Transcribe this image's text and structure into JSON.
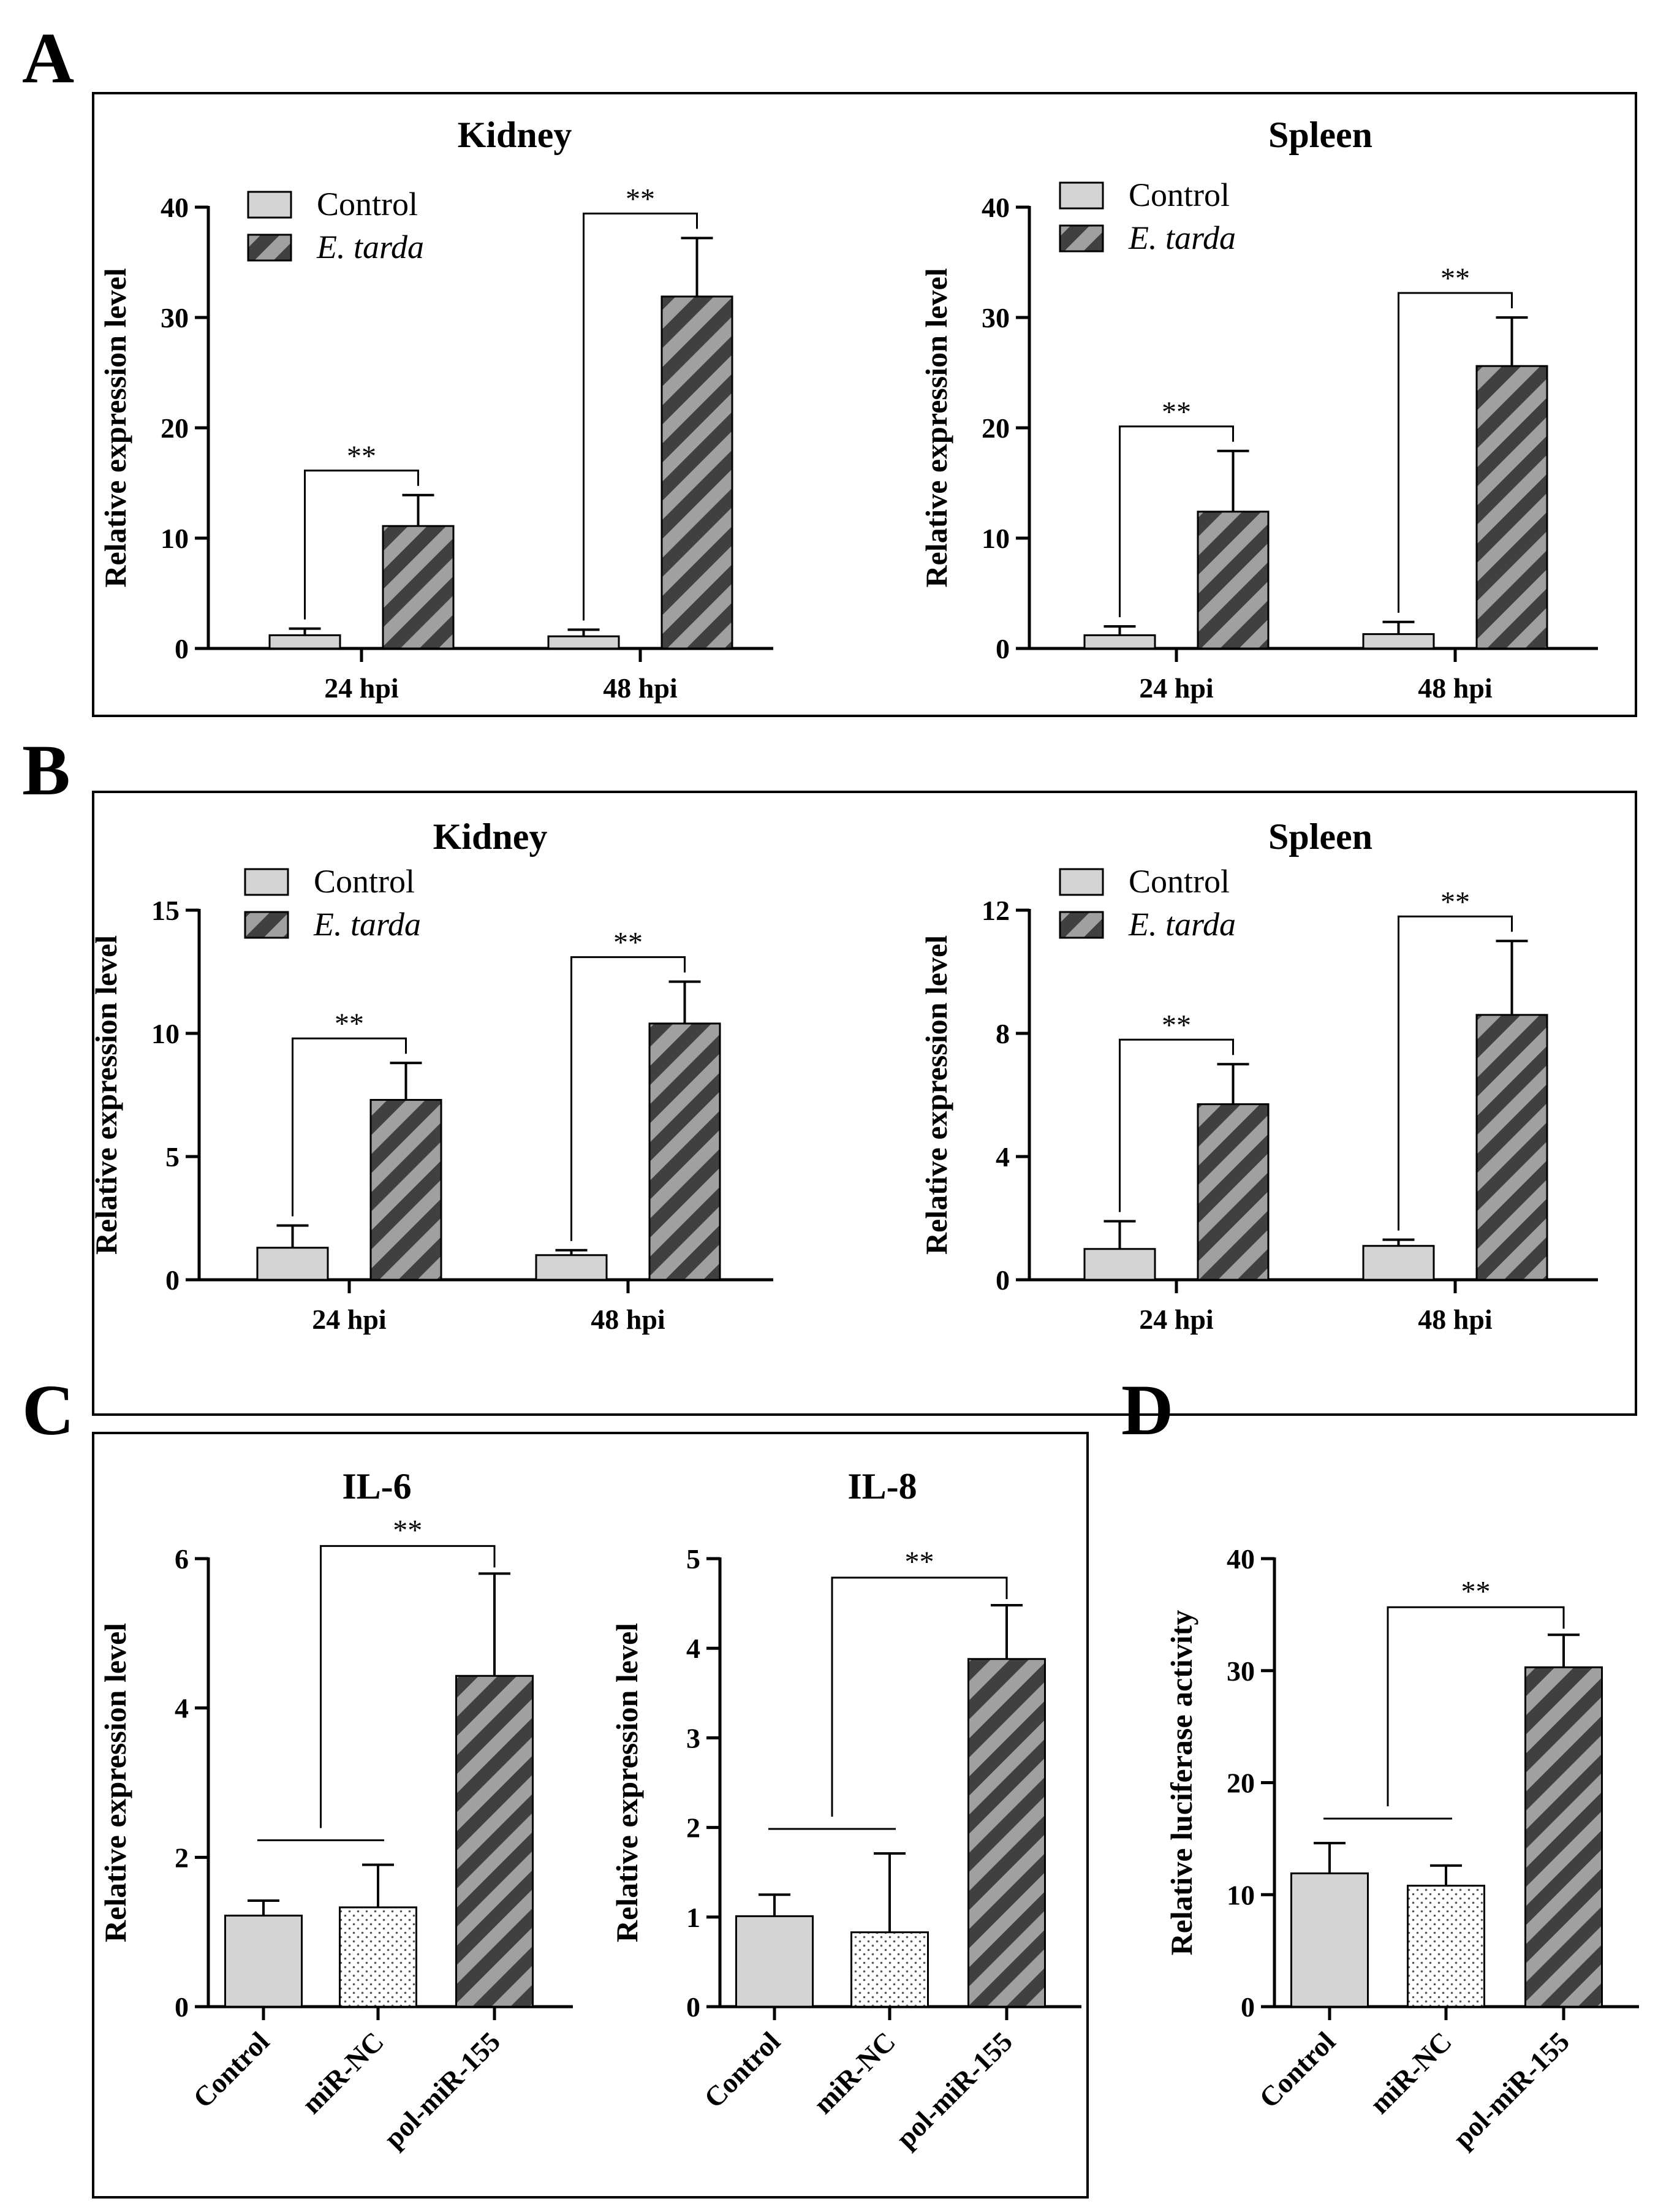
{
  "panels": [
    {
      "id": "A",
      "label": "A",
      "box": true,
      "charts": [
        0,
        1
      ]
    },
    {
      "id": "B",
      "label": "B",
      "box": true,
      "charts": [
        2,
        3
      ]
    },
    {
      "id": "C",
      "label": "C",
      "box": true,
      "charts": [
        4,
        5
      ]
    },
    {
      "id": "D",
      "label": "D",
      "box": false,
      "charts": [
        6
      ]
    }
  ],
  "colors": {
    "control_fill": "#d4d4d4",
    "stripe_light": "#a0a0a0",
    "stripe_dark": "#404040",
    "dotted_bg": "#ffffff",
    "dot_color": "#555555",
    "axis": "#000000"
  },
  "chart_data": [
    {
      "type": "bar",
      "panel": "A",
      "title": "Kidney",
      "ylabel": "Relative expression level",
      "xlabel": "",
      "ylim": [
        0,
        40
      ],
      "yticks": [
        0,
        10,
        20,
        30,
        40
      ],
      "categories": [
        "24 hpi",
        "48 hpi"
      ],
      "legend": {
        "position": "top-left",
        "entries": [
          "Control",
          "E. tarda"
        ]
      },
      "series": [
        {
          "name": "Control",
          "pattern": "solid",
          "values": [
            1.2,
            1.1
          ],
          "errors": [
            0.6,
            0.6
          ]
        },
        {
          "name": "E. tarda",
          "pattern": "stripes",
          "values": [
            11.1,
            31.9
          ],
          "errors": [
            2.8,
            5.3
          ]
        }
      ],
      "significance": [
        {
          "label": "**",
          "category": 0
        },
        {
          "label": "**",
          "category": 1
        }
      ]
    },
    {
      "type": "bar",
      "panel": "A",
      "title": "Spleen",
      "ylabel": "Relative expression level",
      "xlabel": "",
      "ylim": [
        0,
        40
      ],
      "yticks": [
        0,
        10,
        20,
        30,
        40
      ],
      "categories": [
        "24 hpi",
        "48 hpi"
      ],
      "legend": {
        "position": "top-left",
        "entries": [
          "Control",
          "E. tarda"
        ]
      },
      "series": [
        {
          "name": "Control",
          "pattern": "solid",
          "values": [
            1.2,
            1.3
          ],
          "errors": [
            0.8,
            1.1
          ]
        },
        {
          "name": "E. tarda",
          "pattern": "stripes",
          "values": [
            12.4,
            25.6
          ],
          "errors": [
            5.5,
            4.4
          ]
        }
      ],
      "significance": [
        {
          "label": "**",
          "category": 0
        },
        {
          "label": "**",
          "category": 1
        }
      ]
    },
    {
      "type": "bar",
      "panel": "B",
      "title": "Kidney",
      "ylabel": "Relative expression level",
      "xlabel": "",
      "ylim": [
        0,
        15
      ],
      "yticks": [
        0,
        5,
        10,
        15
      ],
      "categories": [
        "24 hpi",
        "48 hpi"
      ],
      "legend": {
        "position": "top-left",
        "entries": [
          "Control",
          "E. tarda"
        ]
      },
      "series": [
        {
          "name": "Control",
          "pattern": "solid",
          "values": [
            1.3,
            1.0
          ],
          "errors": [
            0.9,
            0.2
          ]
        },
        {
          "name": "E. tarda",
          "pattern": "stripes",
          "values": [
            7.3,
            10.4
          ],
          "errors": [
            1.5,
            1.7
          ]
        }
      ],
      "significance": [
        {
          "label": "**",
          "category": 0
        },
        {
          "label": "**",
          "category": 1
        }
      ]
    },
    {
      "type": "bar",
      "panel": "B",
      "title": "Spleen",
      "ylabel": "Relative expression level",
      "xlabel": "",
      "ylim": [
        0,
        12
      ],
      "yticks": [
        0,
        4,
        8,
        12
      ],
      "categories": [
        "24 hpi",
        "48 hpi"
      ],
      "legend": {
        "position": "top-left",
        "entries": [
          "Control",
          "E. tarda"
        ]
      },
      "series": [
        {
          "name": "Control",
          "pattern": "solid",
          "values": [
            1.0,
            1.1
          ],
          "errors": [
            0.9,
            0.2
          ]
        },
        {
          "name": "E. tarda",
          "pattern": "stripes",
          "values": [
            5.7,
            8.6
          ],
          "errors": [
            1.3,
            2.4
          ]
        }
      ],
      "significance": [
        {
          "label": "**",
          "category": 0
        },
        {
          "label": "**",
          "category": 1
        }
      ]
    },
    {
      "type": "bar",
      "panel": "C",
      "title": "IL-6",
      "ylabel": "Relative expression level",
      "xlabel": "",
      "ylim": [
        0,
        6
      ],
      "yticks": [
        0,
        2,
        4,
        6
      ],
      "categories": [
        "Control",
        "miR-NC",
        "pol-miR-155"
      ],
      "patterns": [
        "solid",
        "dotted",
        "stripes"
      ],
      "values": [
        1.22,
        1.33,
        4.43
      ],
      "errors": [
        0.2,
        0.57,
        1.37
      ],
      "significance": {
        "label": "**",
        "group": [
          0,
          1
        ],
        "target": 2
      }
    },
    {
      "type": "bar",
      "panel": "C",
      "title": "IL-8",
      "ylabel": "Relative expression level",
      "xlabel": "",
      "ylim": [
        0,
        5
      ],
      "yticks": [
        0,
        1,
        2,
        3,
        4,
        5
      ],
      "categories": [
        "Control",
        "miR-NC",
        "pol-miR-155"
      ],
      "patterns": [
        "solid",
        "dotted",
        "stripes"
      ],
      "values": [
        1.01,
        0.83,
        3.88
      ],
      "errors": [
        0.24,
        0.88,
        0.6
      ],
      "significance": {
        "label": "**",
        "group": [
          0,
          1
        ],
        "target": 2
      }
    },
    {
      "type": "bar",
      "panel": "D",
      "title": "",
      "ylabel": "Relative luciferase activity",
      "xlabel": "",
      "ylim": [
        0,
        40
      ],
      "yticks": [
        0,
        10,
        20,
        30,
        40
      ],
      "categories": [
        "Control",
        "miR-NC",
        "pol-miR-155"
      ],
      "patterns": [
        "solid",
        "dotted",
        "stripes"
      ],
      "values": [
        11.9,
        10.8,
        30.3
      ],
      "errors": [
        2.7,
        1.8,
        2.9
      ],
      "significance": {
        "label": "**",
        "group": [
          0,
          1
        ],
        "target": 2
      }
    }
  ]
}
